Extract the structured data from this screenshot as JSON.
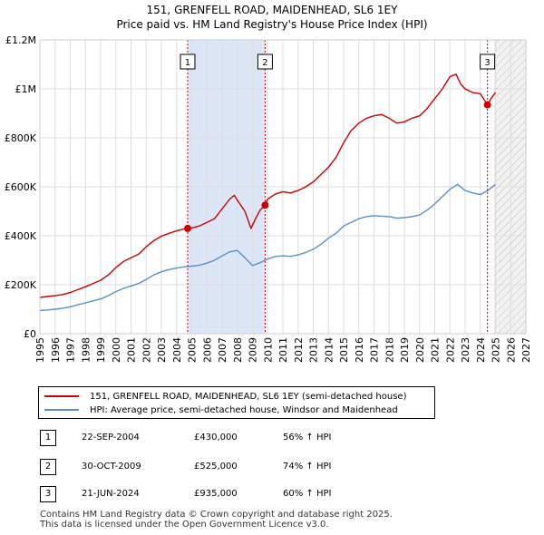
{
  "chart_data": {
    "type": "line",
    "title": "151, GRENFELL ROAD, MAIDENHEAD, SL6 1EY",
    "subtitle": "Price paid vs. HM Land Registry's House Price Index (HPI)",
    "xlabel": "",
    "ylabel": "",
    "xlim": [
      1995,
      2027
    ],
    "ylim": [
      0,
      1200000
    ],
    "x_ticks": [
      "1995",
      "1996",
      "1997",
      "1998",
      "1999",
      "2000",
      "2001",
      "2002",
      "2003",
      "2004",
      "2005",
      "2006",
      "2007",
      "2008",
      "2009",
      "2010",
      "2011",
      "2012",
      "2013",
      "2014",
      "2015",
      "2016",
      "2017",
      "2018",
      "2019",
      "2020",
      "2021",
      "2022",
      "2023",
      "2024",
      "2025",
      "2026",
      "2027"
    ],
    "y_ticks": [
      {
        "value": 0,
        "label": "£0"
      },
      {
        "value": 200000,
        "label": "£200K"
      },
      {
        "value": 400000,
        "label": "£400K"
      },
      {
        "value": 600000,
        "label": "£600K"
      },
      {
        "value": 800000,
        "label": "£800K"
      },
      {
        "value": 1000000,
        "label": "£1M"
      },
      {
        "value": 1200000,
        "label": "£1.2M"
      }
    ],
    "grid": true,
    "shaded_ranges": [
      [
        2004.73,
        2009.83
      ]
    ],
    "future_hatch_from": 2024.9,
    "series": [
      {
        "name": "151, GRENFELL ROAD, MAIDENHEAD, SL6 1EY (semi-detached house)",
        "color": "#cc0000",
        "x": [
          1995,
          1995.5,
          1996,
          1996.5,
          1997,
          1997.5,
          1998,
          1998.5,
          1999,
          1999.5,
          2000,
          2000.5,
          2001,
          2001.5,
          2002,
          2002.5,
          2003,
          2003.5,
          2004,
          2004.5,
          2004.73,
          2005,
          2005.5,
          2006,
          2006.5,
          2007,
          2007.5,
          2007.8,
          2008,
          2008.5,
          2008.9,
          2009.2,
          2009.5,
          2009.83,
          2010,
          2010.5,
          2011,
          2011.5,
          2012,
          2012.5,
          2013,
          2013.5,
          2014,
          2014.5,
          2015,
          2015.5,
          2016,
          2016.5,
          2017,
          2017.5,
          2018,
          2018.5,
          2019,
          2019.5,
          2020,
          2020.5,
          2021,
          2021.5,
          2022,
          2022.4,
          2022.7,
          2023,
          2023.5,
          2024,
          2024.47,
          2024.7,
          2025
        ],
        "values": [
          148000,
          152000,
          155000,
          160000,
          168000,
          180000,
          192000,
          205000,
          218000,
          240000,
          270000,
          295000,
          310000,
          325000,
          355000,
          380000,
          398000,
          410000,
          420000,
          428000,
          430000,
          432000,
          440000,
          455000,
          470000,
          510000,
          550000,
          565000,
          545000,
          500000,
          430000,
          470000,
          505000,
          525000,
          550000,
          570000,
          580000,
          575000,
          585000,
          600000,
          620000,
          650000,
          680000,
          720000,
          780000,
          830000,
          860000,
          880000,
          890000,
          895000,
          880000,
          860000,
          865000,
          880000,
          890000,
          920000,
          960000,
          1000000,
          1050000,
          1060000,
          1020000,
          1000000,
          985000,
          980000,
          935000,
          960000,
          985000
        ]
      },
      {
        "name": "HPI: Average price, semi-detached house, Windsor and Maidenhead",
        "color": "#5b8fc7",
        "x": [
          1995,
          1995.5,
          1996,
          1996.5,
          1997,
          1997.5,
          1998,
          1998.5,
          1999,
          1999.5,
          2000,
          2000.5,
          2001,
          2001.5,
          2002,
          2002.5,
          2003,
          2003.5,
          2004,
          2004.5,
          2005,
          2005.5,
          2006,
          2006.5,
          2007,
          2007.5,
          2008,
          2008.5,
          2009,
          2009.5,
          2010,
          2010.5,
          2011,
          2011.5,
          2012,
          2012.5,
          2013,
          2013.5,
          2014,
          2014.5,
          2015,
          2015.5,
          2016,
          2016.5,
          2017,
          2017.5,
          2018,
          2018.5,
          2019,
          2019.5,
          2020,
          2020.5,
          2021,
          2021.5,
          2022,
          2022.5,
          2023,
          2023.5,
          2024,
          2024.5,
          2025
        ],
        "values": [
          95000,
          97000,
          100000,
          104000,
          110000,
          118000,
          126000,
          134000,
          142000,
          155000,
          172000,
          185000,
          195000,
          205000,
          222000,
          240000,
          253000,
          262000,
          268000,
          273000,
          276000,
          280000,
          288000,
          300000,
          318000,
          335000,
          340000,
          310000,
          278000,
          290000,
          305000,
          315000,
          318000,
          316000,
          322000,
          332000,
          345000,
          365000,
          390000,
          410000,
          440000,
          455000,
          470000,
          478000,
          482000,
          480000,
          478000,
          472000,
          474000,
          478000,
          485000,
          505000,
          530000,
          560000,
          590000,
          610000,
          585000,
          575000,
          568000,
          585000,
          610000
        ]
      }
    ],
    "sales": [
      {
        "label": "1",
        "date": "22-SEP-2004",
        "x": 2004.73,
        "price": 430000,
        "hpi_change": "56% ↑ HPI"
      },
      {
        "label": "2",
        "date": "30-OCT-2009",
        "x": 2009.83,
        "price": 525000,
        "hpi_change": "74% ↑ HPI"
      },
      {
        "label": "3",
        "date": "21-JUN-2024",
        "x": 2024.47,
        "price": 935000,
        "hpi_change": "60% ↑ HPI"
      }
    ]
  },
  "legend": {
    "property_label": "151, GRENFELL ROAD, MAIDENHEAD, SL6 1EY (semi-detached house)",
    "hpi_label": "HPI: Average price, semi-detached house, Windsor and Maidenhead"
  },
  "transactions": [
    {
      "num": "1",
      "date": "22-SEP-2004",
      "price": "£430,000",
      "change": "56% ↑ HPI"
    },
    {
      "num": "2",
      "date": "30-OCT-2009",
      "price": "£525,000",
      "change": "74% ↑ HPI"
    },
    {
      "num": "3",
      "date": "21-JUN-2024",
      "price": "£935,000",
      "change": "60% ↑ HPI"
    }
  ],
  "footer": {
    "line1": "Contains HM Land Registry data © Crown copyright and database right 2025.",
    "line2": "This data is licensed under the Open Government Licence v3.0."
  },
  "colors": {
    "property": "#cc0000",
    "hpi": "#5b8fc7",
    "shade": "#dde6f7",
    "grid": "#dddddd"
  }
}
